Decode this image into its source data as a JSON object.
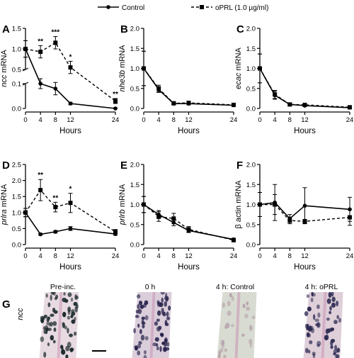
{
  "legend": {
    "control": "Control",
    "oprl": "oPRL (1.0 µg/ml)"
  },
  "chart_data": [
    {
      "panel": "A",
      "type": "line",
      "ylabel_italic": "ncc",
      "ylabel_rest": " mRNA",
      "xlabel": "Hours",
      "x": [
        0,
        4,
        8,
        12,
        24
      ],
      "xlim": [
        0,
        24
      ],
      "broken_y_axis": true,
      "upper_ylim": [
        0.5,
        1.5
      ],
      "upper_yticks": [
        "0.5",
        "1.0",
        "1.5"
      ],
      "lower_ylim": [
        0.0,
        0.1
      ],
      "lower_yticks": [
        "0.0",
        "0.1"
      ],
      "series": [
        {
          "name": "Control",
          "values": [
            1.0,
            0.1,
            0.08,
            0.02,
            0.0
          ],
          "errors": [
            0.2,
            0.02,
            0.025,
            0.005,
            0.003
          ]
        },
        {
          "name": "oPRL (1.0 µg/ml)",
          "values": [
            1.0,
            0.93,
            1.15,
            0.55,
            0.03
          ],
          "errors": [
            0.2,
            0.15,
            0.15,
            0.15,
            0.01
          ]
        }
      ],
      "annotations": [
        {
          "x": 4,
          "text": "**"
        },
        {
          "x": 8,
          "text": "***"
        },
        {
          "x": 12,
          "text": "*"
        },
        {
          "x": 24,
          "text": "**"
        }
      ]
    },
    {
      "panel": "B",
      "type": "line",
      "ylabel_italic": "nhe3b",
      "ylabel_rest": " mRNA",
      "xlabel": "Hours",
      "x": [
        0,
        4,
        8,
        12,
        24
      ],
      "xlim": [
        0,
        24
      ],
      "ylim": [
        0.0,
        2.0
      ],
      "yticks": [
        "0.0",
        "0.5",
        "1.0",
        "1.5",
        "2.0"
      ],
      "series": [
        {
          "name": "Control",
          "values": [
            1.0,
            0.47,
            0.12,
            0.12,
            0.08
          ],
          "errors": [
            0.43,
            0.07,
            0.03,
            0.03,
            0.02
          ]
        },
        {
          "name": "oPRL (1.0 µg/ml)",
          "values": [
            1.0,
            0.5,
            0.13,
            0.14,
            0.09
          ],
          "errors": [
            0.43,
            0.08,
            0.03,
            0.03,
            0.02
          ]
        }
      ],
      "annotations": []
    },
    {
      "panel": "C",
      "type": "line",
      "ylabel_italic": "ecac",
      "ylabel_rest": " mRNA",
      "xlabel": "Hours",
      "x": [
        0,
        4,
        8,
        12,
        24
      ],
      "xlim": [
        0,
        24
      ],
      "ylim": [
        0.0,
        2.0
      ],
      "yticks": [
        "0.0",
        "0.5",
        "1.0",
        "1.5",
        "2.0"
      ],
      "series": [
        {
          "name": "Control",
          "values": [
            1.0,
            0.33,
            0.1,
            0.07,
            0.02
          ],
          "errors": [
            0.36,
            0.1,
            0.02,
            0.02,
            0.01
          ]
        },
        {
          "name": "oPRL (1.0 µg/ml)",
          "values": [
            1.0,
            0.35,
            0.1,
            0.09,
            0.03
          ],
          "errors": [
            0.36,
            0.1,
            0.02,
            0.02,
            0.01
          ]
        }
      ],
      "annotations": []
    },
    {
      "panel": "D",
      "type": "line",
      "ylabel_italic": "prlra",
      "ylabel_rest": " mRNA",
      "xlabel": "Hours",
      "x": [
        0,
        4,
        8,
        12,
        24
      ],
      "xlim": [
        0,
        24
      ],
      "ylim": [
        0.0,
        2.5
      ],
      "yticks": [
        "0.0",
        "0.5",
        "1.0",
        "1.5",
        "2.0",
        "2.5"
      ],
      "series": [
        {
          "name": "Control",
          "values": [
            1.0,
            0.32,
            0.4,
            0.5,
            0.33
          ],
          "errors": [
            0.13,
            0.03,
            0.04,
            0.06,
            0.04
          ]
        },
        {
          "name": "oPRL (1.0 µg/ml)",
          "values": [
            1.0,
            1.7,
            1.17,
            1.3,
            0.4
          ],
          "errors": [
            0.13,
            0.33,
            0.15,
            0.3,
            0.07
          ]
        }
      ],
      "annotations": [
        {
          "x": 4,
          "text": "**"
        },
        {
          "x": 8,
          "text": "**"
        },
        {
          "x": 12,
          "text": "*"
        }
      ]
    },
    {
      "panel": "E",
      "type": "line",
      "ylabel_italic": "prlrb",
      "ylabel_rest": " mRNA",
      "xlabel": "Hours",
      "x": [
        0,
        4,
        8,
        12,
        24
      ],
      "xlim": [
        0,
        24
      ],
      "ylim": [
        0.0,
        2.0
      ],
      "yticks": [
        "0.0",
        "0.5",
        "1.0",
        "1.5",
        "2.0"
      ],
      "series": [
        {
          "name": "Control",
          "values": [
            1.0,
            0.75,
            0.55,
            0.35,
            0.13
          ],
          "errors": [
            0.2,
            0.1,
            0.08,
            0.05,
            0.03
          ]
        },
        {
          "name": "oPRL (1.0 µg/ml)",
          "values": [
            1.0,
            0.7,
            0.65,
            0.38,
            0.11
          ],
          "errors": [
            0.2,
            0.12,
            0.13,
            0.07,
            0.03
          ]
        }
      ],
      "annotations": []
    },
    {
      "panel": "F",
      "type": "line",
      "ylabel_italic": "",
      "ylabel_rest": "β actin mRNA",
      "xlabel": "Hours",
      "x": [
        0,
        4,
        8,
        12,
        24
      ],
      "xlim": [
        0,
        24
      ],
      "ylim": [
        0.0,
        2.0
      ],
      "yticks": [
        "0.0",
        "0.5",
        "1.0",
        "1.5",
        "2.0"
      ],
      "series": [
        {
          "name": "Control",
          "values": [
            1.0,
            1.05,
            0.65,
            0.97,
            0.88
          ],
          "errors": [
            0.3,
            0.45,
            0.1,
            0.45,
            0.3
          ]
        },
        {
          "name": "oPRL (1.0 µg/ml)",
          "values": [
            1.0,
            1.0,
            0.6,
            0.58,
            0.68
          ],
          "errors": [
            0.3,
            0.25,
            0.08,
            0.05,
            0.2
          ]
        }
      ],
      "annotations": []
    }
  ],
  "panel_g": {
    "letter": "G",
    "row_label": "ncc",
    "images": [
      {
        "label": "Pre-inc.",
        "tissue": "#e7d8df",
        "cell": "#1d2c2e",
        "density": 0.95
      },
      {
        "label": "0 h",
        "tissue": "#d9cbd9",
        "cell": "#26224a",
        "density": 0.9
      },
      {
        "label": "4 h: Control",
        "tissue": "#d6d9cf",
        "cell": "#b7a3ad",
        "density": 0.35
      },
      {
        "label": "4 h: oPRL",
        "tissue": "#ddccd7",
        "cell": "#2a2850",
        "density": 0.8
      }
    ]
  }
}
